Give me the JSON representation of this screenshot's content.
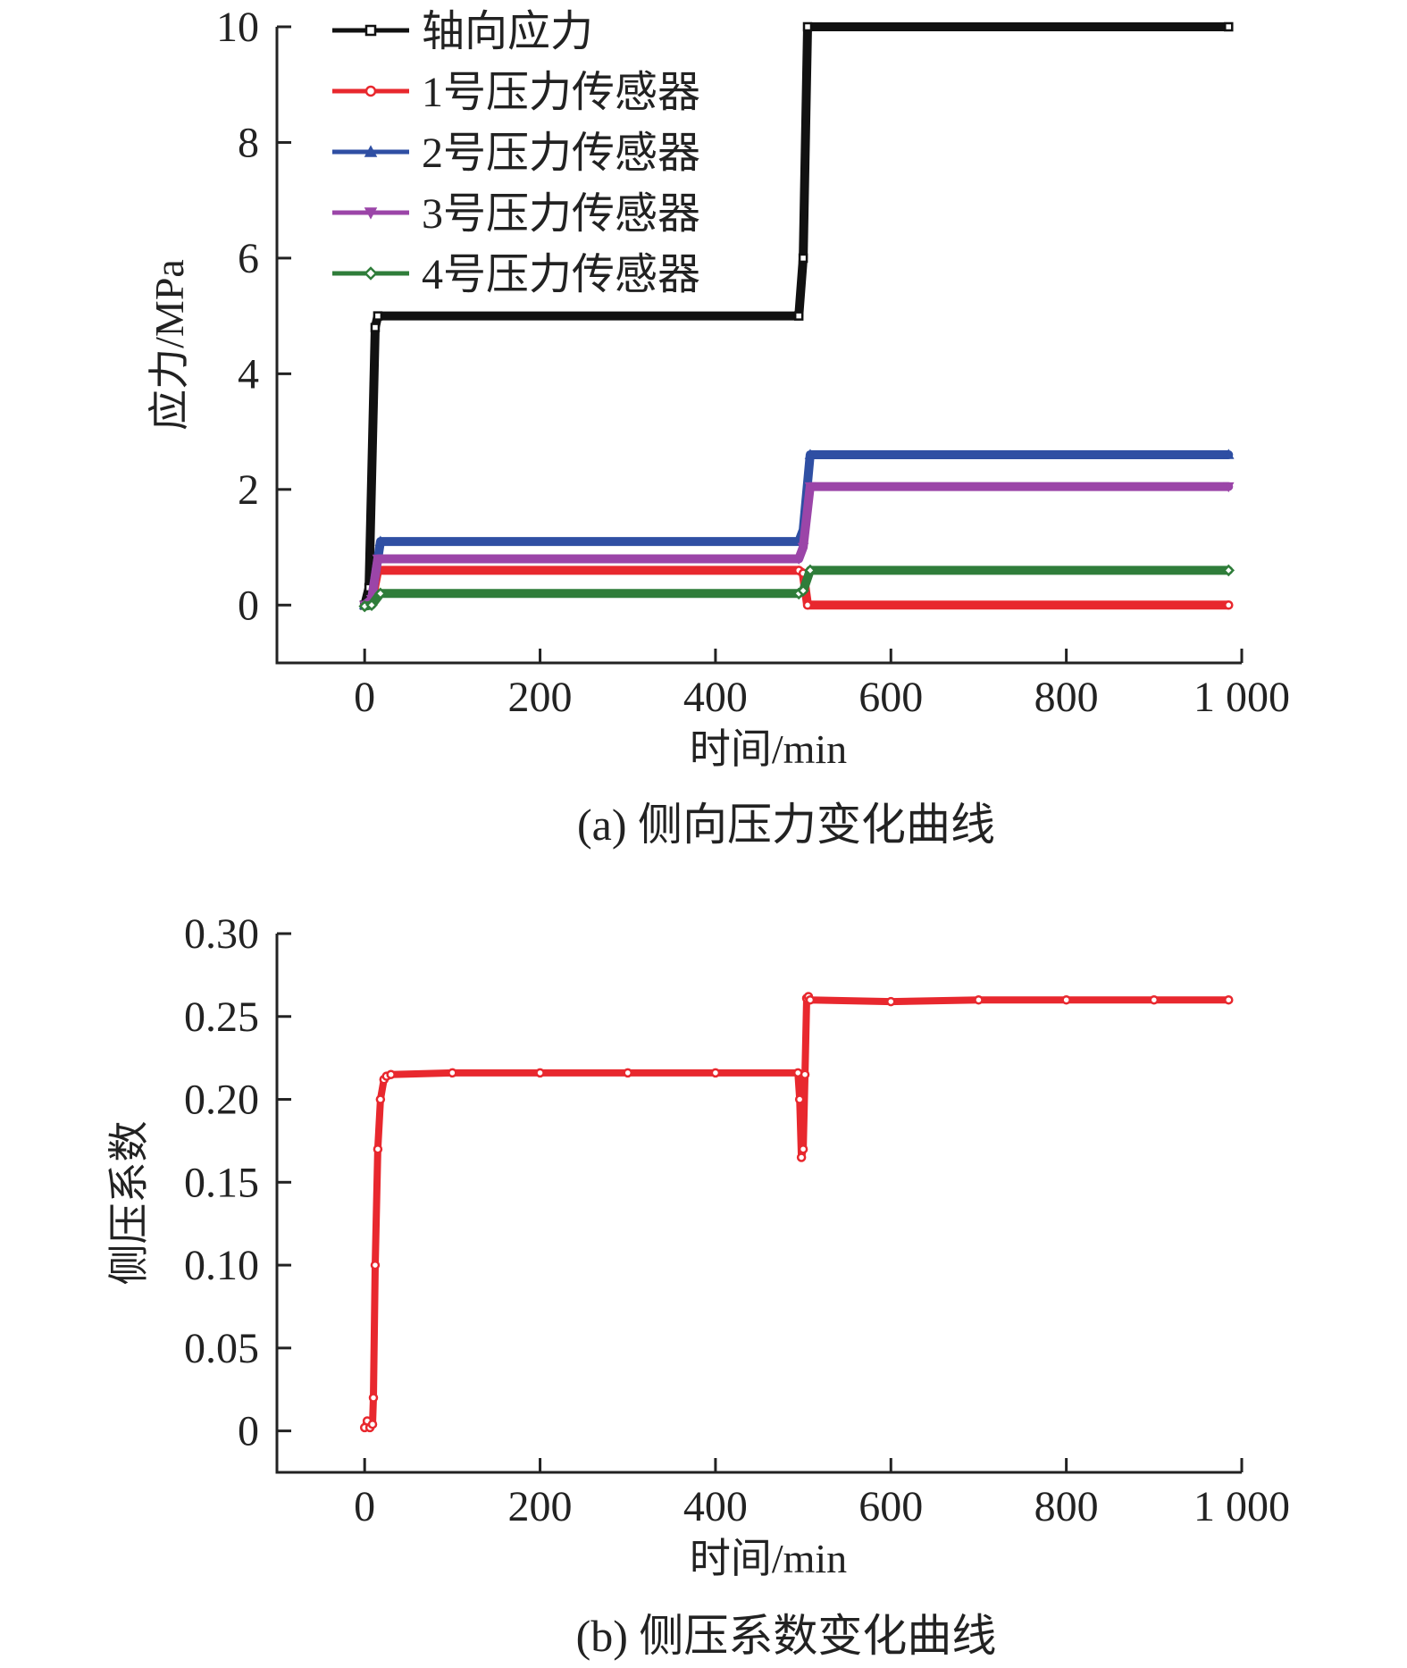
{
  "chart_data": [
    {
      "type": "line",
      "caption": "(a) 侧向压力变化曲线",
      "xlabel": "时间/min",
      "ylabel": "应力/MPa",
      "xlim": [
        -100,
        1000
      ],
      "ylim": [
        -1,
        10
      ],
      "x_ticks": [
        0,
        200,
        400,
        600,
        800,
        1000
      ],
      "x_tick_labels": [
        "0",
        "200",
        "400",
        "600",
        "800",
        "1 000"
      ],
      "y_ticks": [
        0,
        2,
        4,
        6,
        8,
        10
      ],
      "y_tick_labels": [
        "0",
        "2",
        "4",
        "6",
        "8",
        "10"
      ],
      "legend_position": "top-left",
      "series": [
        {
          "name": "轴向应力",
          "color": "#111111",
          "marker": "square",
          "x": [
            0,
            5,
            12,
            15,
            495,
            500,
            505,
            985
          ],
          "y": [
            0,
            0.3,
            4.8,
            5.0,
            5.0,
            6.0,
            10.0,
            10.0
          ]
        },
        {
          "name": "1号压力传感器",
          "color": "#e8282e",
          "marker": "circle",
          "x": [
            0,
            8,
            15,
            495,
            500,
            505,
            985
          ],
          "y": [
            0,
            0.05,
            0.6,
            0.6,
            0.55,
            0.0,
            0.0
          ]
        },
        {
          "name": "2号压力传感器",
          "color": "#2f4fa3",
          "marker": "triangle-up",
          "x": [
            0,
            8,
            18,
            495,
            500,
            508,
            985
          ],
          "y": [
            0,
            0.1,
            1.1,
            1.1,
            1.3,
            2.6,
            2.6
          ]
        },
        {
          "name": "3号压力传感器",
          "color": "#9b45a8",
          "marker": "triangle-down",
          "x": [
            0,
            8,
            15,
            495,
            500,
            508,
            985
          ],
          "y": [
            0,
            0.1,
            0.8,
            0.8,
            1.0,
            2.05,
            2.05
          ]
        },
        {
          "name": "4号压力传感器",
          "color": "#2f7d3a",
          "marker": "diamond",
          "x": [
            0,
            8,
            18,
            495,
            500,
            508,
            985
          ],
          "y": [
            -0.02,
            0.0,
            0.2,
            0.2,
            0.25,
            0.6,
            0.6
          ]
        }
      ]
    },
    {
      "type": "line",
      "caption": "(b) 侧压系数变化曲线",
      "xlabel": "时间/min",
      "ylabel": "侧压系数",
      "xlim": [
        -100,
        1000
      ],
      "ylim": [
        -0.025,
        0.3
      ],
      "x_ticks": [
        0,
        200,
        400,
        600,
        800,
        1000
      ],
      "x_tick_labels": [
        "0",
        "200",
        "400",
        "600",
        "800",
        "1 000"
      ],
      "y_ticks": [
        0,
        0.05,
        0.1,
        0.15,
        0.2,
        0.25,
        0.3
      ],
      "y_tick_labels": [
        "0",
        "0.05",
        "0.10",
        "0.15",
        "0.20",
        "0.25",
        "0.30"
      ],
      "series": [
        {
          "color": "#e8282e",
          "marker": "circle",
          "x": [
            0,
            3,
            6,
            9,
            10,
            12,
            15,
            18,
            22,
            25,
            30,
            100,
            200,
            300,
            400,
            494,
            496,
            498,
            500,
            502,
            504,
            506,
            508,
            600,
            700,
            800,
            900,
            985
          ],
          "y": [
            0.002,
            0.006,
            0.002,
            0.004,
            0.02,
            0.1,
            0.17,
            0.2,
            0.212,
            0.214,
            0.215,
            0.216,
            0.216,
            0.216,
            0.216,
            0.216,
            0.2,
            0.165,
            0.17,
            0.215,
            0.261,
            0.262,
            0.26,
            0.259,
            0.26,
            0.26,
            0.26,
            0.26
          ]
        }
      ]
    }
  ]
}
